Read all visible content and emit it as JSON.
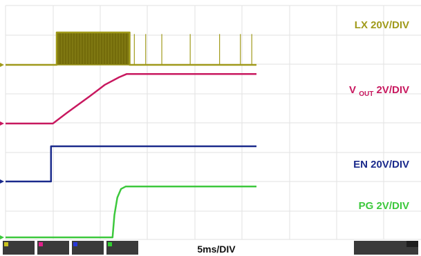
{
  "chart_data": {
    "type": "line",
    "x_scale": "5ms/DIV",
    "series": [
      {
        "name": "LX",
        "scale": "20V/DIV",
        "color": "#a09a1a",
        "points": [
          [
            0,
            0
          ],
          [
            5.4,
            0
          ],
          [
            5.4,
            1
          ],
          [
            13.1,
            1
          ],
          [
            13.1,
            0
          ],
          [
            26.5,
            0
          ]
        ],
        "spikes": [
          13.6,
          14.8,
          16.5,
          19.5,
          22.6,
          24.8,
          26.0
        ]
      },
      {
        "name": "VOUT",
        "name_main": "V",
        "name_sub": "OUT",
        "scale": "2V/DIV",
        "color": "#c8185f",
        "points": [
          [
            0,
            0
          ],
          [
            5.0,
            0
          ],
          [
            6.5,
            1.0
          ],
          [
            9.0,
            2.6
          ],
          [
            10.5,
            3.6
          ],
          [
            12.0,
            4.3
          ],
          [
            12.8,
            4.6
          ],
          [
            26.5,
            4.6
          ]
        ]
      },
      {
        "name": "EN",
        "scale": "20V/DIV",
        "color": "#1a2a8c",
        "points": [
          [
            0,
            0
          ],
          [
            4.8,
            0
          ],
          [
            4.8,
            1.7
          ],
          [
            26.5,
            1.7
          ]
        ]
      },
      {
        "name": "PG",
        "scale": "2V/DIV",
        "color": "#3cc83c",
        "points": [
          [
            0,
            0
          ],
          [
            11.3,
            0
          ],
          [
            11.5,
            1.8
          ],
          [
            11.8,
            3.2
          ],
          [
            12.2,
            3.9
          ],
          [
            12.7,
            4.1
          ],
          [
            26.5,
            4.1
          ]
        ]
      }
    ]
  }
}
